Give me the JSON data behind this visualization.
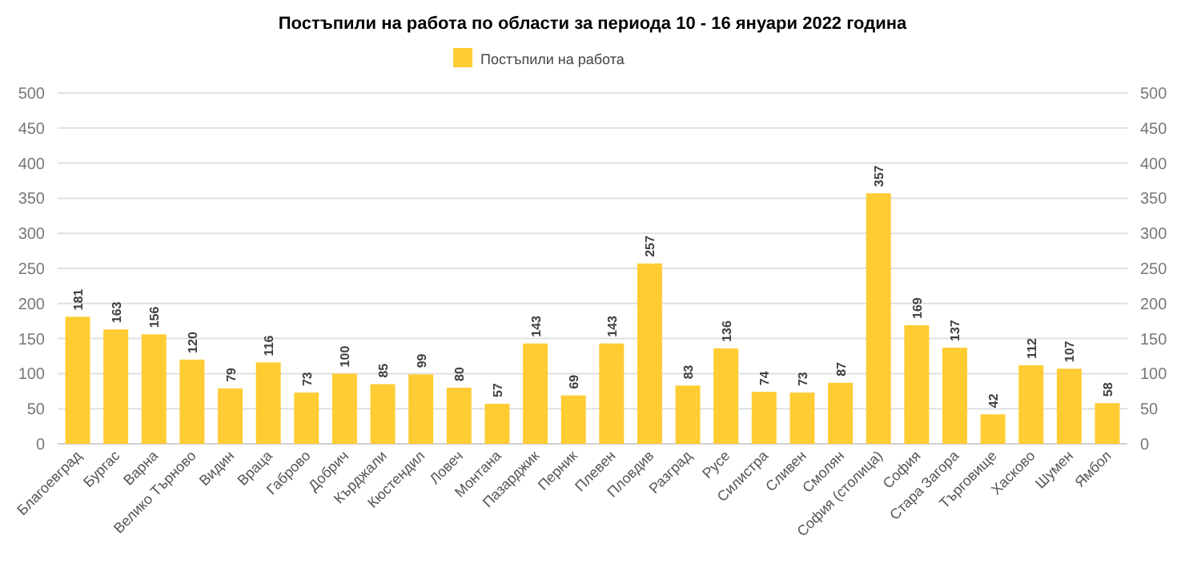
{
  "chart_data": {
    "type": "bar",
    "title": "Постъпили на работа по области за периода 10 - 16 януари 2022 година",
    "categories": [
      "Благоевград",
      "Бургас",
      "Варна",
      "Велико Търново",
      "Видин",
      "Враца",
      "Габрово",
      "Добрич",
      "Кърджали",
      "Кюстендил",
      "Ловеч",
      "Монтана",
      "Пазарджик",
      "Перник",
      "Плевен",
      "Пловдив",
      "Разград",
      "Русе",
      "Силистра",
      "Сливен",
      "Смолян",
      "София (столица)",
      "София",
      "Стара Загора",
      "Търговище",
      "Хасково",
      "Шумен",
      "Ямбол"
    ],
    "series": [
      {
        "name": "Постъпили на работа",
        "color": "#ffcc33",
        "values": [
          181,
          163,
          156,
          120,
          79,
          116,
          73,
          100,
          85,
          99,
          80,
          57,
          143,
          69,
          143,
          257,
          83,
          136,
          74,
          73,
          87,
          357,
          169,
          137,
          42,
          112,
          107,
          58
        ]
      }
    ],
    "ylim": [
      0,
      500
    ],
    "yticks": [
      0,
      50,
      100,
      150,
      200,
      250,
      300,
      350,
      400,
      450,
      500
    ],
    "y2lim": [
      0,
      500
    ],
    "y2ticks": [
      0,
      50,
      100,
      150,
      200,
      250,
      300,
      350,
      400,
      450,
      500
    ],
    "grid": "y",
    "legend": "top",
    "data_labels": true
  }
}
